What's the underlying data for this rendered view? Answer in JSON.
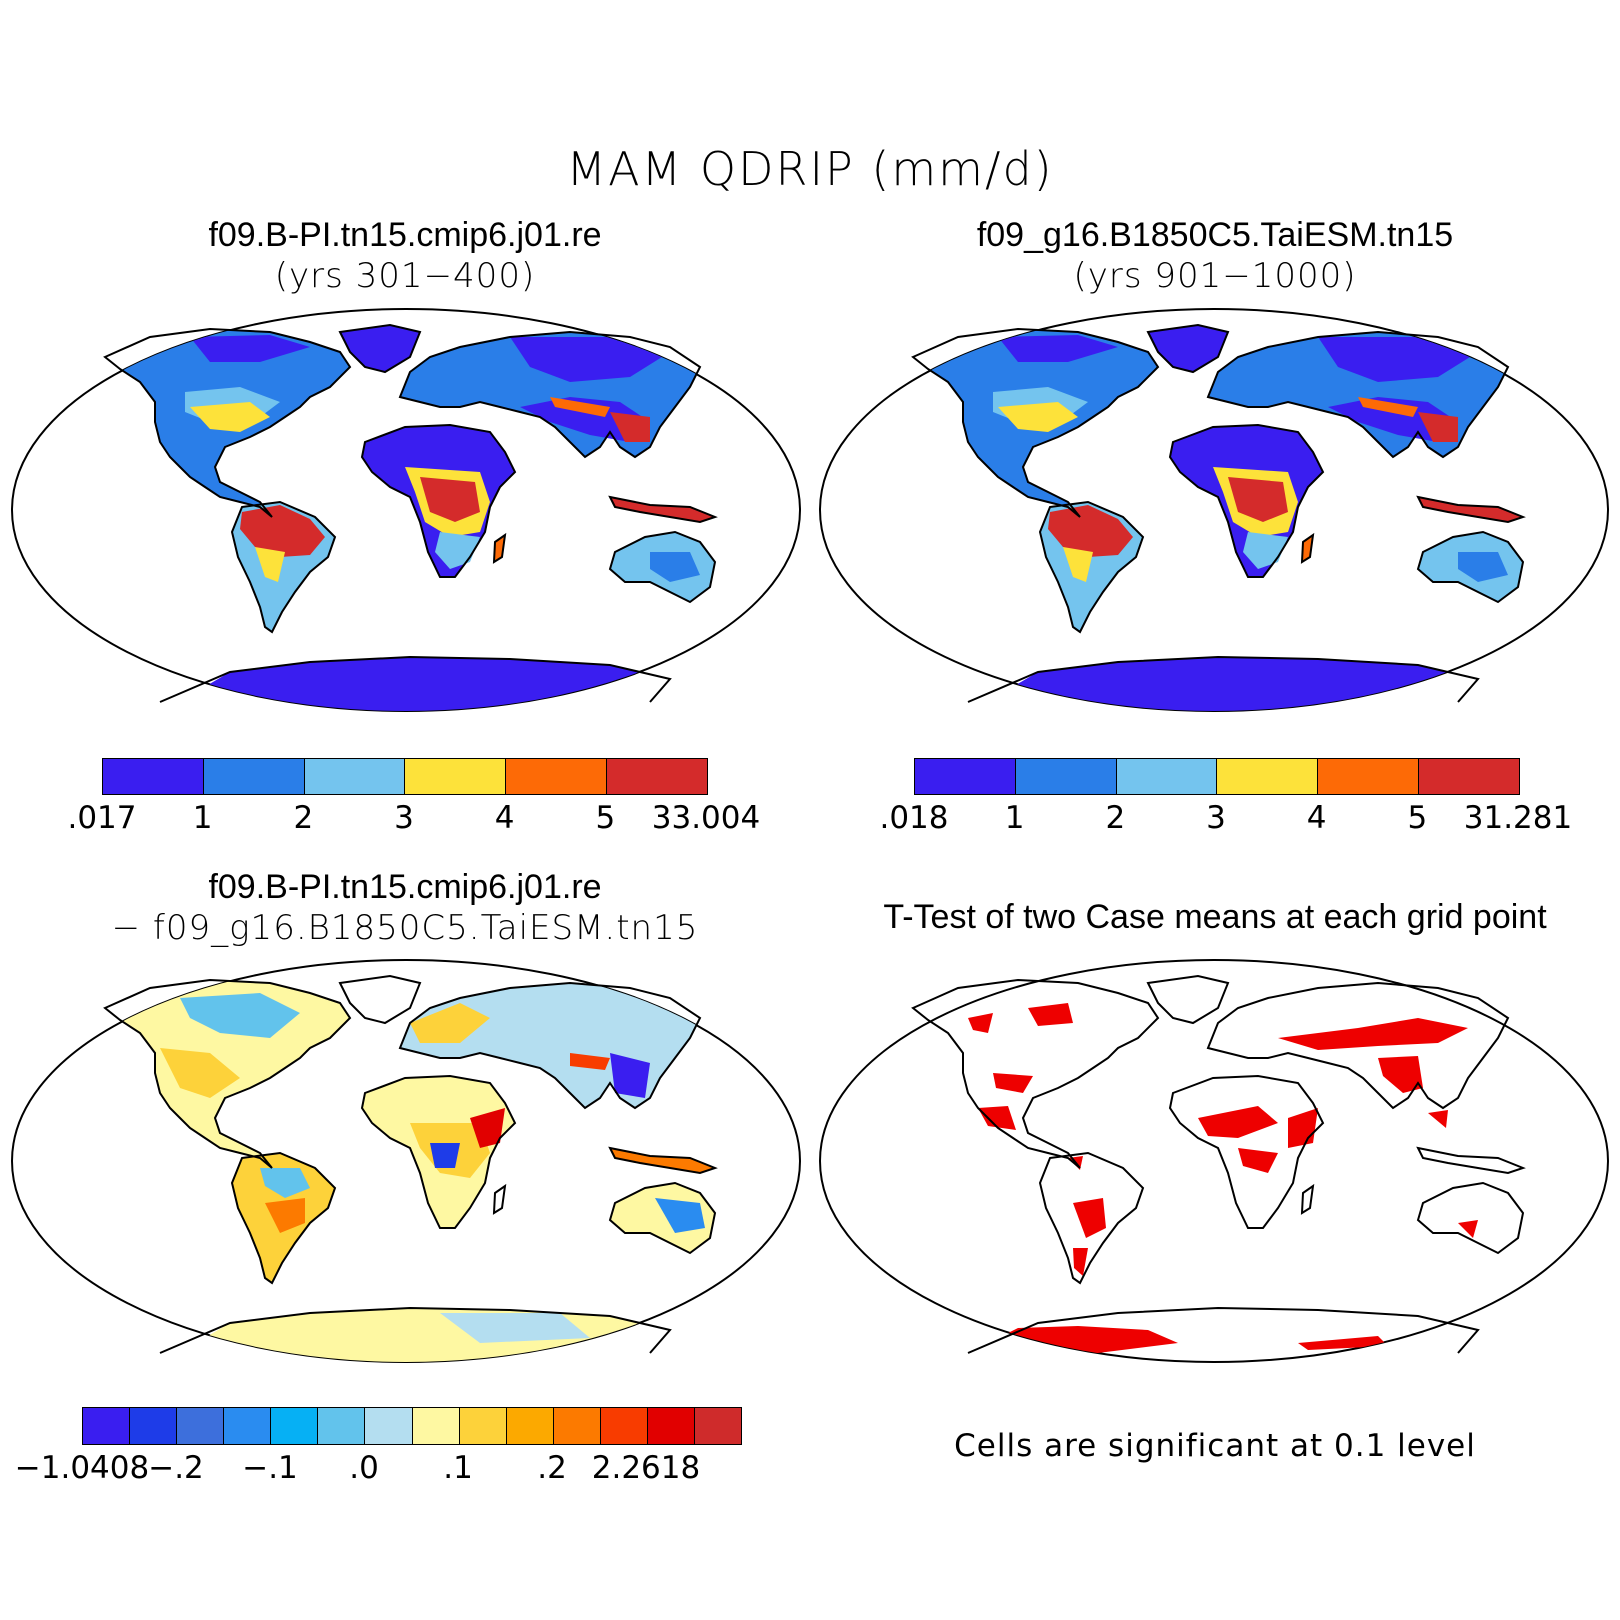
{
  "title": "MAM QDRIP (mm/d)",
  "panels": [
    {
      "title": "f09.B-PI.tn15.cmip6.j01.re",
      "subtitle": "(yrs 301−400)",
      "colorbar": {
        "colors": [
          "#3a1ef0",
          "#2a7ee8",
          "#74c4ee",
          "#fde23a",
          "#fd6a06",
          "#d42b2b"
        ],
        "labels": [
          ".017",
          "1",
          "2",
          "3",
          "4",
          "5",
          "33.004"
        ]
      }
    },
    {
      "title": "f09_g16.B1850C5.TaiESM.tn15",
      "subtitle": "(yrs 901−1000)",
      "colorbar": {
        "colors": [
          "#3a1ef0",
          "#2a7ee8",
          "#74c4ee",
          "#fde23a",
          "#fd6a06",
          "#d42b2b"
        ],
        "labels": [
          ".018",
          "1",
          "2",
          "3",
          "4",
          "5",
          "31.281"
        ]
      }
    },
    {
      "title": "f09.B-PI.tn15.cmip6.j01.re",
      "subtitle": "− f09_g16.B1850C5.TaiESM.tn15",
      "colorbar": {
        "colors": [
          "#3a1ef0",
          "#1e3ce8",
          "#3d6fdc",
          "#2a8cf0",
          "#06b0f4",
          "#62c3ec",
          "#b4def0",
          "#fef8a2",
          "#fdd23a",
          "#fca900",
          "#fc7a00",
          "#f83c00",
          "#e10000",
          "#cf2b2b"
        ],
        "labels": [
          "−1.0408",
          "−.2",
          "−.1",
          ".0",
          ".1",
          ".2",
          "2.2618"
        ]
      }
    },
    {
      "title": "T-Test of two Case means at each grid point",
      "note": "Cells are significant at 0.1 level",
      "fill_color": "#ee0000"
    }
  ]
}
